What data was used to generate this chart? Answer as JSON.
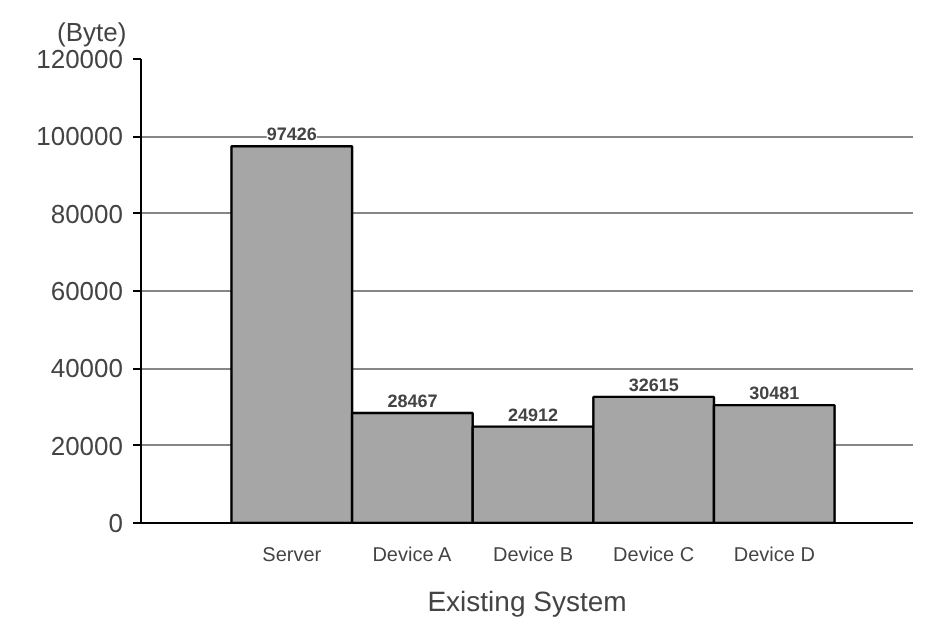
{
  "chart_data": {
    "type": "bar",
    "ylabel": "(Byte)",
    "xlabel": "Existing System",
    "categories": [
      "Server",
      "Device A",
      "Device B",
      "Device C",
      "Device D"
    ],
    "values": [
      97426,
      28467,
      24912,
      32615,
      30481
    ],
    "color": "#a6a6a6",
    "ylim": [
      0,
      120000
    ],
    "yticks": [
      0,
      20000,
      40000,
      60000,
      80000,
      100000,
      120000
    ],
    "grid": "y",
    "data_labels": true
  }
}
